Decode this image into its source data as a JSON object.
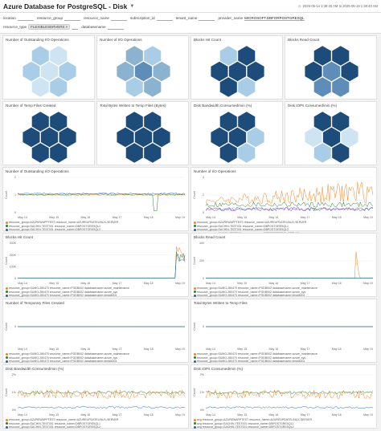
{
  "header": {
    "title": "Azure Database for PostgreSQL - Disk",
    "timerange": "2025-05-14 1:38:40 AM to 2025-05-19 1:38:40 AM"
  },
  "filters": {
    "location": "location",
    "resource_group": "resource_group",
    "resource_name": "resource_name",
    "subscription_id": "subscription_id",
    "tenant_name": "tenant_name",
    "provider_name": "provider_name",
    "provider_value": "MICROSOFT.DBFORPOSTGRESQL",
    "resource_type": "resource_type",
    "resource_type_value": "FLEXIBLESERVERS",
    "databasename": "databasename"
  },
  "honeycombs": [
    {
      "title": "Number of Outstanding I/O Operations",
      "shades": [
        "#a9cde6",
        "#cfe4f2",
        "#a9cde6",
        "#cfe4f2",
        "#a9cde6",
        "#cfe4f2",
        "#a9cde6"
      ]
    },
    {
      "title": "Number of I/O Operations",
      "shades": [
        "#8bb2cf",
        "#a9cde6",
        "#8bb2cf",
        "#5d8db8",
        "#8bb2cf",
        "#a9cde6",
        "#8bb2cf"
      ]
    },
    {
      "title": "Blocks Hit Count",
      "shades": [
        "#a9cde6",
        "#1d4b7a",
        "#1d4b7a",
        "#1d4b7a",
        "#1d4b7a",
        "#1d4b7a",
        "#a9cde6"
      ]
    },
    {
      "title": "Blocks Read Count",
      "shades": [
        "#1d4b7a",
        "#1d4b7a",
        "#1d4b7a",
        "#5d8db8",
        "#1d4b7a",
        "#5d8db8",
        "#5d8db8"
      ]
    },
    {
      "title": "Number of Temp Files Created",
      "shades": [
        "#1d4b7a",
        "#1d4b7a",
        "#1d4b7a",
        "#1d4b7a",
        "#1d4b7a",
        "#1d4b7a",
        "#1d4b7a"
      ]
    },
    {
      "title": "Total Bytes Written to Temp Files (Bytes)",
      "shades": [
        "#1d4b7a",
        "#1d4b7a",
        "#1d4b7a",
        "#1d4b7a",
        "#1d4b7a",
        "#1d4b7a",
        "#1d4b7a"
      ]
    },
    {
      "title": "Disk Bandwidth Consumed/min (%)",
      "shades": [
        "#1d4b7a",
        "#1d4b7a",
        "#1d4b7a",
        "#1d4b7a",
        "#a9cde6",
        "#1d4b7a",
        "#a9cde6"
      ]
    },
    {
      "title": "Disk IOPs Consumed/min (%)",
      "shades": [
        "#1d4b7a",
        "#1d4b7a",
        "#cfe4f2",
        "#1d4b7a",
        "#cfe4f2",
        "#a9cde6",
        "#1d4b7a"
      ]
    }
  ],
  "charts": [
    {
      "title": "Number of Outstanding I/O Operations",
      "ylabel": "Count",
      "yticks": [
        "0",
        "1",
        "2"
      ],
      "xticks": [
        "May 14",
        "May 15",
        "May 16",
        "May 17",
        "May 18",
        "May 19"
      ],
      "pattern": "flat",
      "legend": [
        "resource_group=AZUREWAPPTEST resource_name=AZUREUPDATELINUX-SERVER",
        "resource_group=SACHIN-TEST001 resource_name=DBPOSTGRESQL1",
        "resource_group=SACHIN-TEST001 resource_name=DBPOSTGRESQL2"
      ],
      "colors": [
        "#f58220",
        "#2e7d32",
        "#1565c0"
      ]
    },
    {
      "title": "Number of I/O Operations",
      "ylabel": "Count",
      "yticks": [
        "0",
        "2",
        "4"
      ],
      "xticks": [
        "May 14",
        "May 15",
        "May 16",
        "May 17",
        "May 18",
        "May 19"
      ],
      "pattern": "noisy",
      "legend": [
        "resource_group=AZUREWAPPTEST resource_name=AZUREUPDATELINUX-SERVER",
        "resource_group=SACHIN-TEST001 resource_name=DBPOSTGRESQL1",
        "resource_group=SACHIN-TEST001 resource_name=DBPOSTGRESQL2",
        "resource_group=SACHIN-TEST001 resource_name=DBPOSTGRESQL-REPLICA"
      ],
      "colors": [
        "#f58220",
        "#2e7d32",
        "#1565c0",
        "#8e24aa"
      ]
    },
    {
      "title": "Blocks Hit Count",
      "ylabel": "Count",
      "yticks": [
        "0",
        "100K",
        "200K",
        "300K"
      ],
      "xticks": [
        "May 14",
        "May 15",
        "May 16",
        "May 17",
        "May 18",
        "May 19"
      ],
      "pattern": "spikeend",
      "legend": [
        "resource_group=SUMO-280470 resource_name=PGDB002 databasename=azure_maintenance",
        "resource_group=SUMO-280470 resource_name=PGDB002 databasename=azure_sys",
        "resource_group=SUMO-280470 resource_name=PGDB002 databasename=testdb001"
      ],
      "colors": [
        "#f58220",
        "#2e7d32",
        "#1565c0"
      ]
    },
    {
      "title": "Blocks Read Count",
      "ylabel": "Count",
      "yticks": [
        "0",
        "200",
        "400"
      ],
      "xticks": [
        "May 14",
        "May 15",
        "May 16",
        "May 17",
        "May 18",
        "May 19"
      ],
      "pattern": "spikelate",
      "legend": [
        "resource_group=SUMO-280470 resource_name=PGDB002 databasename=azure_maintenance",
        "resource_group=SUMO-280470 resource_name=PGDB002 databasename=azure_sys",
        "resource_group=SUMO-280470 resource_name=PGDB002 databasename=testdb001"
      ],
      "colors": [
        "#f58220",
        "#2e7d32",
        "#1565c0"
      ]
    },
    {
      "title": "Number of Temporary Files Created",
      "ylabel": "Count",
      "yticks": [
        "0"
      ],
      "xticks": [
        "May 14",
        "May 15",
        "May 16",
        "May 17",
        "May 18",
        "May 19"
      ],
      "pattern": "zero",
      "legend": [
        "resource_group=SUMO-280470 resource_name=PGDB002 databasename=azure_maintenance",
        "resource_group=SUMO-280470 resource_name=PGDB002 databasename=azure_sys",
        "resource_group=SUMO-280470 resource_name=PGDB002 databasename=testdb001"
      ],
      "colors": [
        "#f58220",
        "#2e7d32",
        "#1565c0"
      ]
    },
    {
      "title": "Total Bytes Written to Temp Files",
      "ylabel": "Count",
      "yticks": [
        "0"
      ],
      "xticks": [
        "May 14",
        "May 15",
        "May 16",
        "May 17",
        "May 18",
        "May 19"
      ],
      "pattern": "zero",
      "legend": [
        "resource_group=SUMO-280470 resource_name=PGDB002 databasename=azure_maintenance",
        "resource_group=SUMO-280470 resource_name=PGDB002 databasename=azure_sys",
        "resource_group=SUMO-280470 resource_name=PGDB002 databasename=testdb001"
      ],
      "colors": [
        "#f58220",
        "#2e7d32",
        "#1565c0"
      ]
    },
    {
      "title": "Disk Bandwidth Consumed/min (%)",
      "ylabel": "Count",
      "yticks": [
        "0%",
        "1%",
        "2%"
      ],
      "xticks": [
        "May 14",
        "May 15",
        "May 16",
        "May 17",
        "May 18",
        "May 19"
      ],
      "pattern": "noisylow",
      "legend": [
        "resource_group=AZUREWAPPTEST resource_name=AZUREUPDATELINUX-SERVER",
        "resource_group=SACHIN-TEST001 resource_name=DBPOSTGRESQL1",
        "resource_group=SACHIN-TEST001 resource_name=DBPOSTGRESQL2"
      ],
      "colors": [
        "#f58220",
        "#2e7d32",
        "#1565c0"
      ]
    },
    {
      "title": "Disk IOPs Consumed/min (%)",
      "ylabel": "Count",
      "yticks": [
        "0%",
        "1%",
        "2%"
      ],
      "xticks": [
        "May 14",
        "May 15",
        "May 16",
        "May 17",
        "May 18",
        "May 19"
      ],
      "pattern": "noisylow",
      "legend": [
        "avg resource_group=AZUREWAPPTEST resource_name=AZUREUPDATELINUX-SERVER",
        "avg resource_group=SACHIN-TEST001 resource_name=DBPOSTGRESQL1",
        "avg resource_group=SACHIN-TEST001 resource_name=DBPOSTGRESQL2"
      ],
      "colors": [
        "#f58220",
        "#2e7d32",
        "#1565c0"
      ]
    }
  ]
}
